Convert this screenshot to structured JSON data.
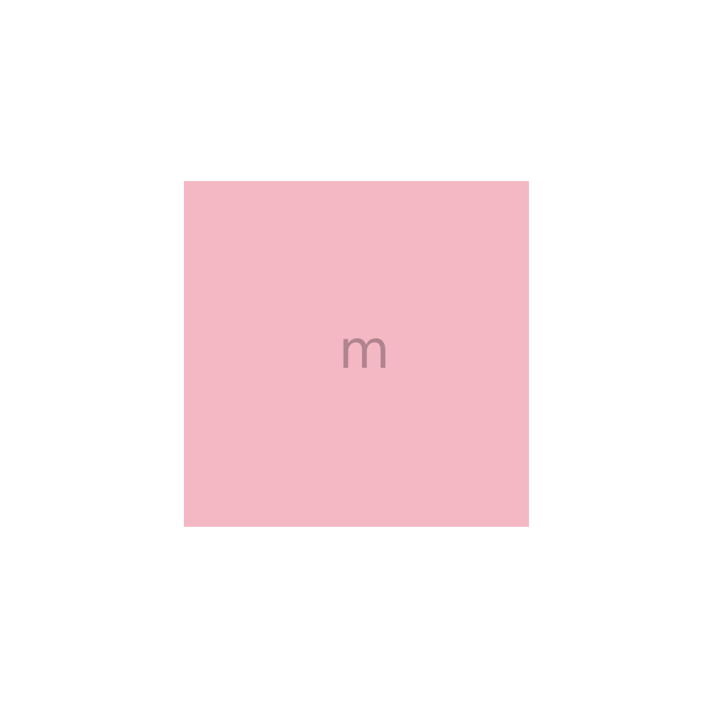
{
  "tile": {
    "letter": "m",
    "background_color": "#f4b8c4",
    "letter_color": "#b0848e"
  }
}
